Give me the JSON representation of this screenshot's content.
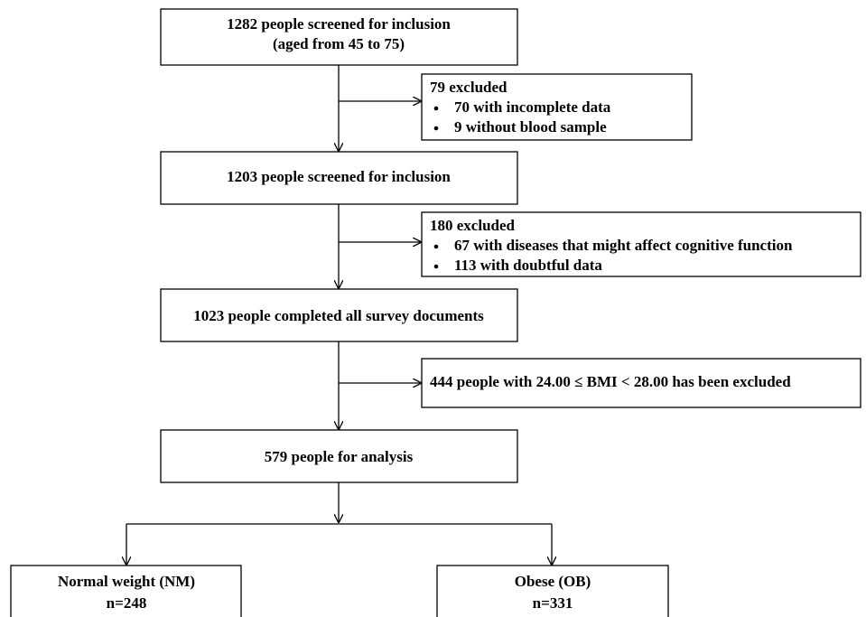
{
  "nodes": [
    {
      "lines": [
        "1282 people screened for inclusion",
        "(aged from 45 to 75)"
      ]
    },
    {
      "lines": [
        "1203 people screened for inclusion"
      ]
    },
    {
      "lines": [
        "1023 people completed all survey documents"
      ]
    },
    {
      "lines": [
        "579 people for analysis"
      ]
    },
    {
      "lines": [
        "Normal weight  (NM)",
        "n=248"
      ]
    },
    {
      "lines": [
        "Obese  (OB)",
        "n=331"
      ]
    }
  ],
  "exclusions": [
    {
      "title": "79 excluded",
      "items": [
        "70 with incomplete data",
        "9 without blood sample"
      ]
    },
    {
      "title": "180 excluded",
      "items": [
        "67 with diseases that might affect cognitive function",
        "113 with doubtful data"
      ]
    },
    {
      "title": "444 people with 24.00 ≤ BMI < 28.00 has been excluded"
    }
  ]
}
